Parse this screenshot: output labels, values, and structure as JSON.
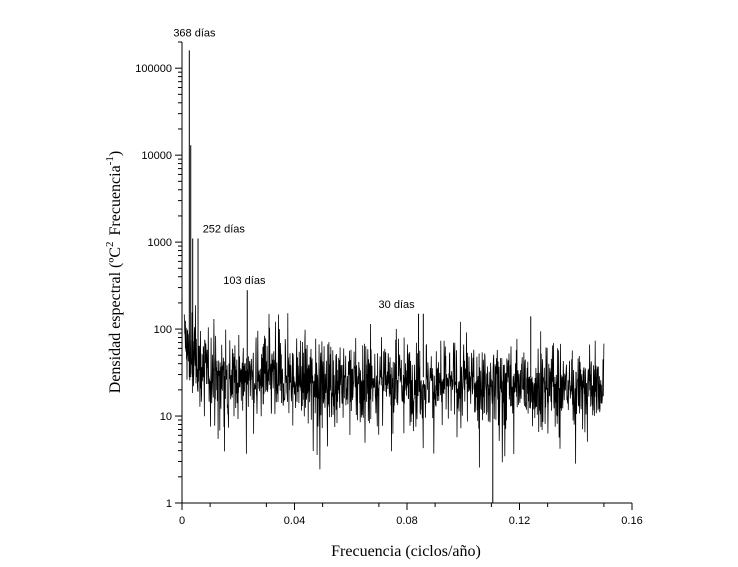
{
  "chart_data": {
    "type": "line",
    "title": "",
    "xlabel": "Frecuencia (ciclos/año)",
    "ylabel_parts": {
      "a": "Densidad espectral (ºC",
      "b": "2",
      "c": "Frecuencia",
      "d": "-1",
      "e": ")"
    },
    "xlim": [
      0,
      0.16
    ],
    "ylim": [
      1,
      200000
    ],
    "yscale": "log",
    "x_ticks": [
      {
        "value": 0,
        "label": "0"
      },
      {
        "value": 0.04,
        "label": "0.04"
      },
      {
        "value": 0.08,
        "label": "0.08"
      },
      {
        "value": 0.12,
        "label": "0.12"
      },
      {
        "value": 0.16,
        "label": "0.16"
      }
    ],
    "y_ticks": [
      {
        "value": 1,
        "label": "1"
      },
      {
        "value": 10,
        "label": "10"
      },
      {
        "value": 100,
        "label": "100"
      },
      {
        "value": 1000,
        "label": "1000"
      },
      {
        "value": 10000,
        "label": "10000"
      },
      {
        "value": 100000,
        "label": "100000"
      }
    ],
    "series_color": "#000000",
    "x_max_data": 0.15,
    "baseline": 28,
    "peaks": [
      {
        "x": 0.0026,
        "y": 160000,
        "label": "368 días"
      },
      {
        "x": 0.0031,
        "y": 13000,
        "label": ""
      },
      {
        "x": 0.0038,
        "y": 1100,
        "label": "252 días"
      },
      {
        "x": 0.0057,
        "y": 1100,
        "label": ""
      },
      {
        "x": 0.0232,
        "y": 280,
        "label": "103 días"
      },
      {
        "x": 0.0841,
        "y": 150,
        "label": "30 días"
      },
      {
        "x": 0.0858,
        "y": 150,
        "label": ""
      },
      {
        "x": 0.1105,
        "y": 1,
        "label": ""
      },
      {
        "x": 0.124,
        "y": 140,
        "label": ""
      }
    ]
  }
}
